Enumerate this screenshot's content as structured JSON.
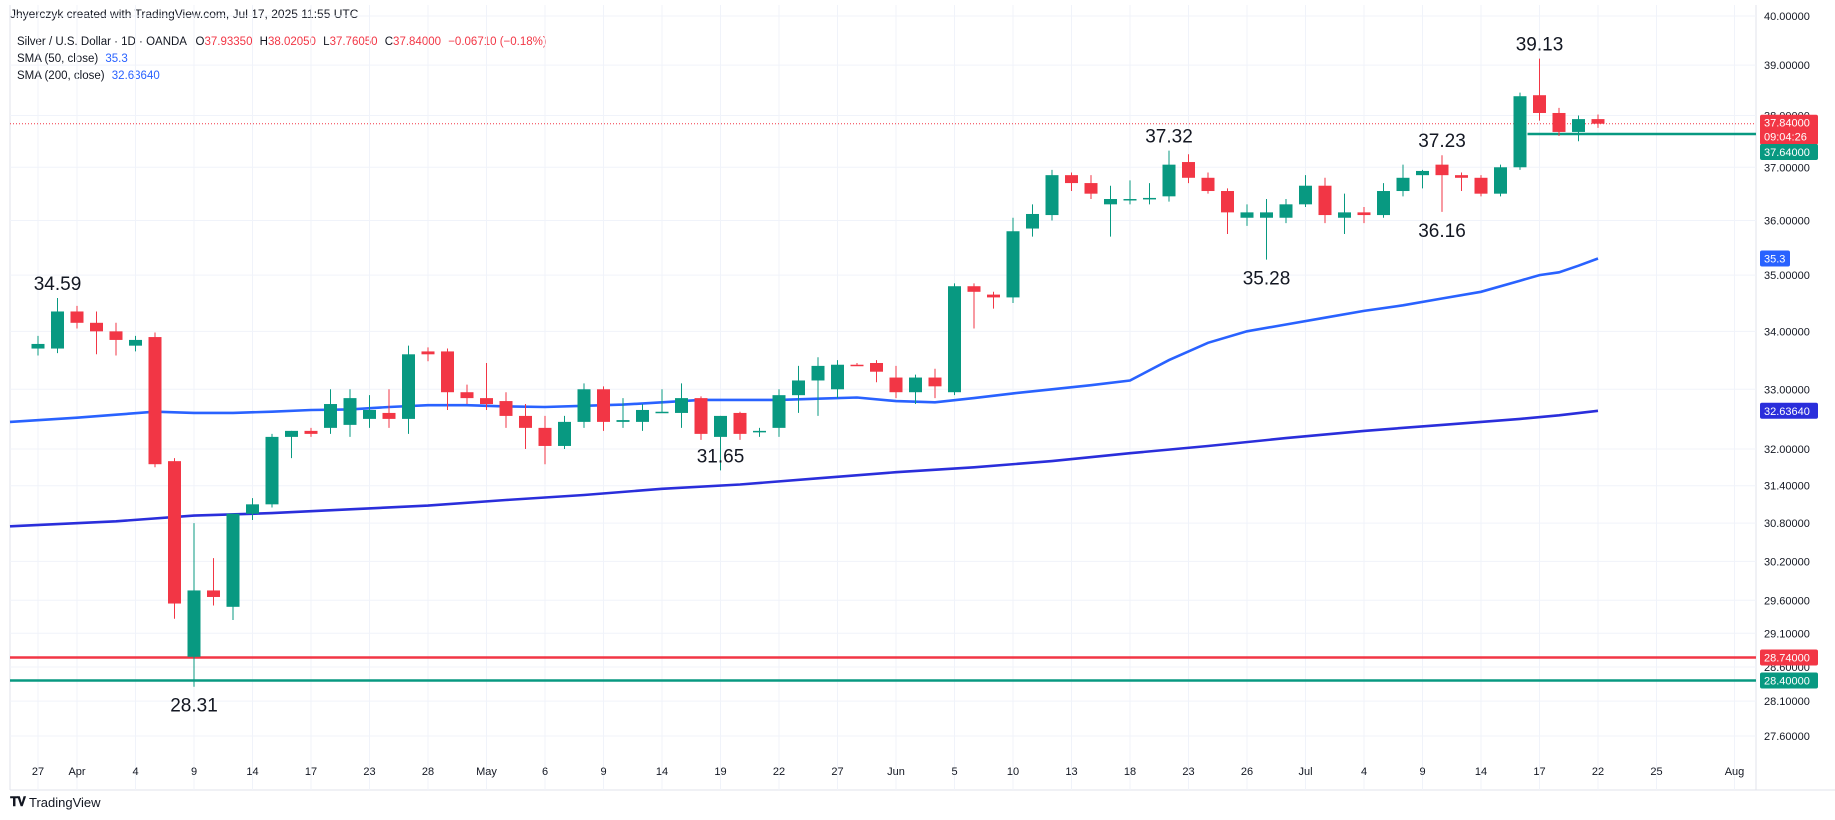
{
  "header": {
    "creator_line": "Jhyerczyk created with TradingView.com, Jul 17, 2025 11:55 UTC"
  },
  "legend": {
    "symbol": "Silver / U.S. Dollar · 1D · OANDA",
    "o_label": "O",
    "o_value": "37.93350",
    "h_label": "H",
    "h_value": "38.02050",
    "l_label": "L",
    "l_value": "37.76050",
    "c_label": "C",
    "c_value": "37.84000",
    "change": "−0.06710 (−0.18%)",
    "sma50_label": "SMA (50, close)",
    "sma50_value": "35.3",
    "sma200_label": "SMA (200, close)",
    "sma200_value": "32.63640"
  },
  "footer": {
    "brand": "TradingView"
  },
  "colors": {
    "up": "#089981",
    "down": "#f23645",
    "sma50": "#2962ff",
    "sma200": "#2a2edb",
    "resistance_red": "#f23645",
    "support_green": "#089981",
    "last_price": "#f23645"
  },
  "chart_data": {
    "type": "candlestick",
    "y_axis": {
      "scale": "log",
      "tick_labels": [
        "40.00000",
        "39.00000",
        "38.00000",
        "37.00000",
        "36.00000",
        "35.00000",
        "34.00000",
        "33.00000",
        "32.00000",
        "31.40000",
        "30.80000",
        "30.20000",
        "29.60000",
        "29.10000",
        "28.60000",
        "28.10000",
        "27.60000"
      ],
      "ticks": [
        40,
        39,
        38,
        37,
        36,
        35,
        34,
        33,
        32,
        31.4,
        30.8,
        30.2,
        29.6,
        29.1,
        28.6,
        28.1,
        27.6
      ],
      "ylim": [
        27.3,
        40.3
      ]
    },
    "x_axis": {
      "tick_labels": [
        "27",
        "Apr",
        "4",
        "9",
        "14",
        "17",
        "23",
        "28",
        "May",
        "6",
        "9",
        "14",
        "19",
        "22",
        "27",
        "Jun",
        "5",
        "10",
        "13",
        "18",
        "23",
        "26",
        "Jul",
        "4",
        "9",
        "14",
        "17",
        "22",
        "25",
        "Aug"
      ],
      "tick_index": [
        0,
        2,
        5,
        8,
        11,
        14,
        17,
        20,
        23,
        26,
        29,
        32,
        35,
        38,
        41,
        44,
        47,
        50,
        53,
        56,
        59,
        62,
        65,
        68,
        71,
        74,
        77,
        80,
        83,
        87
      ]
    },
    "candles": [
      {
        "o": 33.7,
        "h": 33.92,
        "l": 33.58,
        "c": 33.78
      },
      {
        "o": 33.7,
        "h": 34.59,
        "l": 33.62,
        "c": 34.35
      },
      {
        "o": 34.35,
        "h": 34.45,
        "l": 34.05,
        "c": 34.15
      },
      {
        "o": 34.15,
        "h": 34.35,
        "l": 33.6,
        "c": 34.0
      },
      {
        "o": 34.0,
        "h": 34.15,
        "l": 33.58,
        "c": 33.85
      },
      {
        "o": 33.75,
        "h": 33.92,
        "l": 33.65,
        "c": 33.85
      },
      {
        "o": 33.9,
        "h": 33.98,
        "l": 31.7,
        "c": 31.75
      },
      {
        "o": 31.8,
        "h": 31.85,
        "l": 29.32,
        "c": 29.55
      },
      {
        "o": 28.75,
        "h": 30.8,
        "l": 28.31,
        "c": 29.75
      },
      {
        "o": 29.75,
        "h": 30.25,
        "l": 29.52,
        "c": 29.65
      },
      {
        "o": 29.5,
        "h": 30.95,
        "l": 29.3,
        "c": 30.95
      },
      {
        "o": 30.95,
        "h": 31.2,
        "l": 30.85,
        "c": 31.1
      },
      {
        "o": 31.1,
        "h": 32.25,
        "l": 31.05,
        "c": 32.2
      },
      {
        "o": 32.2,
        "h": 32.3,
        "l": 31.85,
        "c": 32.3
      },
      {
        "o": 32.3,
        "h": 32.35,
        "l": 32.2,
        "c": 32.25
      },
      {
        "o": 32.35,
        "h": 33.0,
        "l": 32.25,
        "c": 32.75
      },
      {
        "o": 32.4,
        "h": 33.0,
        "l": 32.2,
        "c": 32.85
      },
      {
        "o": 32.5,
        "h": 32.9,
        "l": 32.35,
        "c": 32.65
      },
      {
        "o": 32.6,
        "h": 33.0,
        "l": 32.35,
        "c": 32.5
      },
      {
        "o": 32.5,
        "h": 33.75,
        "l": 32.25,
        "c": 33.6
      },
      {
        "o": 33.65,
        "h": 33.72,
        "l": 33.48,
        "c": 33.6
      },
      {
        "o": 33.65,
        "h": 33.7,
        "l": 32.65,
        "c": 32.95
      },
      {
        "o": 32.95,
        "h": 33.08,
        "l": 32.75,
        "c": 32.85
      },
      {
        "o": 32.85,
        "h": 33.45,
        "l": 32.65,
        "c": 32.75
      },
      {
        "o": 32.8,
        "h": 32.95,
        "l": 32.35,
        "c": 32.55
      },
      {
        "o": 32.55,
        "h": 32.75,
        "l": 32.0,
        "c": 32.35
      },
      {
        "o": 32.35,
        "h": 32.55,
        "l": 31.75,
        "c": 32.05
      },
      {
        "o": 32.05,
        "h": 32.55,
        "l": 32.0,
        "c": 32.45
      },
      {
        "o": 32.45,
        "h": 33.1,
        "l": 32.35,
        "c": 33.0
      },
      {
        "o": 33.0,
        "h": 33.05,
        "l": 32.3,
        "c": 32.45
      },
      {
        "o": 32.45,
        "h": 32.85,
        "l": 32.35,
        "c": 32.48
      },
      {
        "o": 32.45,
        "h": 32.75,
        "l": 32.3,
        "c": 32.65
      },
      {
        "o": 32.62,
        "h": 33.0,
        "l": 32.6,
        "c": 32.62
      },
      {
        "o": 32.6,
        "h": 33.1,
        "l": 32.35,
        "c": 32.85
      },
      {
        "o": 32.85,
        "h": 32.88,
        "l": 32.15,
        "c": 32.25
      },
      {
        "o": 32.2,
        "h": 32.55,
        "l": 31.65,
        "c": 32.55
      },
      {
        "o": 32.6,
        "h": 32.62,
        "l": 32.15,
        "c": 32.25
      },
      {
        "o": 32.3,
        "h": 32.35,
        "l": 32.2,
        "c": 32.3
      },
      {
        "o": 32.35,
        "h": 33.0,
        "l": 32.2,
        "c": 32.9
      },
      {
        "o": 32.9,
        "h": 33.4,
        "l": 32.6,
        "c": 33.15
      },
      {
        "o": 33.15,
        "h": 33.55,
        "l": 32.55,
        "c": 33.4
      },
      {
        "o": 33.0,
        "h": 33.5,
        "l": 32.85,
        "c": 33.42
      },
      {
        "o": 33.42,
        "h": 33.45,
        "l": 33.4,
        "c": 33.4
      },
      {
        "o": 33.45,
        "h": 33.5,
        "l": 33.12,
        "c": 33.3
      },
      {
        "o": 33.2,
        "h": 33.4,
        "l": 32.85,
        "c": 32.95
      },
      {
        "o": 32.95,
        "h": 33.25,
        "l": 32.75,
        "c": 33.2
      },
      {
        "o": 33.2,
        "h": 33.35,
        "l": 32.85,
        "c": 33.05
      },
      {
        "o": 32.95,
        "h": 34.85,
        "l": 32.9,
        "c": 34.8
      },
      {
        "o": 34.8,
        "h": 34.85,
        "l": 34.05,
        "c": 34.7
      },
      {
        "o": 34.65,
        "h": 34.7,
        "l": 34.4,
        "c": 34.6
      },
      {
        "o": 34.6,
        "h": 36.05,
        "l": 34.5,
        "c": 35.8
      },
      {
        "o": 35.85,
        "h": 36.3,
        "l": 35.7,
        "c": 36.12
      },
      {
        "o": 36.1,
        "h": 36.95,
        "l": 36.0,
        "c": 36.85
      },
      {
        "o": 36.85,
        "h": 36.9,
        "l": 36.55,
        "c": 36.7
      },
      {
        "o": 36.7,
        "h": 36.85,
        "l": 36.4,
        "c": 36.5
      },
      {
        "o": 36.3,
        "h": 36.65,
        "l": 35.7,
        "c": 36.4
      },
      {
        "o": 36.4,
        "h": 36.75,
        "l": 36.3,
        "c": 36.4
      },
      {
        "o": 36.4,
        "h": 36.7,
        "l": 36.3,
        "c": 36.42
      },
      {
        "o": 36.45,
        "h": 37.32,
        "l": 36.35,
        "c": 37.05
      },
      {
        "o": 37.1,
        "h": 37.25,
        "l": 36.7,
        "c": 36.8
      },
      {
        "o": 36.8,
        "h": 36.9,
        "l": 36.5,
        "c": 36.55
      },
      {
        "o": 36.55,
        "h": 36.6,
        "l": 35.75,
        "c": 36.15
      },
      {
        "o": 36.05,
        "h": 36.3,
        "l": 35.9,
        "c": 36.15
      },
      {
        "o": 36.05,
        "h": 36.4,
        "l": 35.28,
        "c": 36.15
      },
      {
        "o": 36.05,
        "h": 36.4,
        "l": 35.95,
        "c": 36.3
      },
      {
        "o": 36.3,
        "h": 36.85,
        "l": 36.25,
        "c": 36.65
      },
      {
        "o": 36.65,
        "h": 36.8,
        "l": 35.95,
        "c": 36.1
      },
      {
        "o": 36.05,
        "h": 36.5,
        "l": 35.75,
        "c": 36.15
      },
      {
        "o": 36.15,
        "h": 36.25,
        "l": 35.95,
        "c": 36.1
      },
      {
        "o": 36.1,
        "h": 36.7,
        "l": 36.05,
        "c": 36.55
      },
      {
        "o": 36.55,
        "h": 37.05,
        "l": 36.45,
        "c": 36.8
      },
      {
        "o": 36.85,
        "h": 36.95,
        "l": 36.6,
        "c": 36.93
      },
      {
        "o": 37.05,
        "h": 37.23,
        "l": 36.16,
        "c": 36.85
      },
      {
        "o": 36.85,
        "h": 36.9,
        "l": 36.55,
        "c": 36.8
      },
      {
        "o": 36.8,
        "h": 36.85,
        "l": 36.45,
        "c": 36.5
      },
      {
        "o": 36.5,
        "h": 37.05,
        "l": 36.45,
        "c": 37.0
      },
      {
        "o": 37.0,
        "h": 38.45,
        "l": 36.95,
        "c": 38.38
      },
      {
        "o": 38.4,
        "h": 39.13,
        "l": 37.9,
        "c": 38.05
      },
      {
        "o": 38.05,
        "h": 38.15,
        "l": 37.6,
        "c": 37.68
      },
      {
        "o": 37.68,
        "h": 38.0,
        "l": 37.5,
        "c": 37.93
      },
      {
        "o": 37.93,
        "h": 38.02,
        "l": 37.76,
        "c": 37.84
      }
    ],
    "series": [
      {
        "name": "SMA (50, close)",
        "points": [
          [
            0,
            32.45
          ],
          [
            2,
            32.52
          ],
          [
            4,
            32.57
          ],
          [
            6,
            32.62
          ],
          [
            8,
            32.6
          ],
          [
            10,
            32.6
          ],
          [
            12,
            32.62
          ],
          [
            14,
            32.65
          ],
          [
            16,
            32.66
          ],
          [
            18,
            32.7
          ],
          [
            20,
            32.73
          ],
          [
            22,
            32.73
          ],
          [
            24,
            32.71
          ],
          [
            26,
            32.7
          ],
          [
            28,
            32.72
          ],
          [
            30,
            32.74
          ],
          [
            32,
            32.78
          ],
          [
            34,
            32.82
          ],
          [
            36,
            32.82
          ],
          [
            38,
            32.82
          ],
          [
            40,
            32.84
          ],
          [
            42,
            32.86
          ],
          [
            44,
            32.8
          ],
          [
            46,
            32.78
          ],
          [
            48,
            32.85
          ],
          [
            50,
            32.93
          ],
          [
            52,
            33.0
          ],
          [
            54,
            33.07
          ],
          [
            56,
            33.15
          ],
          [
            58,
            33.5
          ],
          [
            60,
            33.8
          ],
          [
            62,
            34.0
          ],
          [
            64,
            34.12
          ],
          [
            66,
            34.24
          ],
          [
            68,
            34.36
          ],
          [
            70,
            34.46
          ],
          [
            72,
            34.58
          ],
          [
            74,
            34.7
          ],
          [
            76,
            34.9
          ],
          [
            77,
            35.0
          ],
          [
            78,
            35.05
          ],
          [
            79,
            35.17
          ],
          [
            80,
            35.3
          ]
        ]
      },
      {
        "name": "SMA (200, close)",
        "points": [
          [
            0,
            30.75
          ],
          [
            4,
            30.83
          ],
          [
            8,
            30.92
          ],
          [
            12,
            30.96
          ],
          [
            16,
            31.02
          ],
          [
            20,
            31.08
          ],
          [
            24,
            31.17
          ],
          [
            28,
            31.25
          ],
          [
            32,
            31.35
          ],
          [
            36,
            31.42
          ],
          [
            40,
            31.52
          ],
          [
            44,
            31.62
          ],
          [
            48,
            31.7
          ],
          [
            52,
            31.8
          ],
          [
            56,
            31.93
          ],
          [
            60,
            32.05
          ],
          [
            64,
            32.18
          ],
          [
            68,
            32.3
          ],
          [
            72,
            32.4
          ],
          [
            76,
            32.5
          ],
          [
            78,
            32.56
          ],
          [
            80,
            32.6364
          ]
        ]
      }
    ],
    "horizontal_lines": [
      {
        "value": 37.84,
        "label": "37.84000",
        "sub_label": "09:04:26",
        "style": "dotted",
        "color": "#f23645"
      },
      {
        "value": 37.64,
        "label": "37.64000",
        "style": "solid",
        "color": "#089981",
        "start_index": 77
      },
      {
        "value": 28.74,
        "label": "28.74000",
        "style": "solid",
        "color": "#f23645"
      },
      {
        "value": 28.4,
        "label": "28.40000",
        "style": "solid",
        "color": "#089981"
      }
    ],
    "axis_tags": [
      {
        "value": 35.3,
        "label": "35.3",
        "color": "#2962ff"
      },
      {
        "value": 32.6364,
        "label": "32.63640",
        "color": "#2a2edb"
      }
    ],
    "annotations": [
      {
        "text": "34.59",
        "index": 1,
        "value": 34.59,
        "pos": "above"
      },
      {
        "text": "28.31",
        "index": 8,
        "value": 28.31,
        "pos": "below"
      },
      {
        "text": "31.65",
        "index": 35,
        "value": 31.65,
        "pos": "above"
      },
      {
        "text": "37.32",
        "index": 58,
        "value": 37.32,
        "pos": "above"
      },
      {
        "text": "35.28",
        "index": 63,
        "value": 35.28,
        "pos": "below"
      },
      {
        "text": "37.23",
        "index": 72,
        "value": 37.23,
        "pos": "above"
      },
      {
        "text": "36.16",
        "index": 72,
        "value": 36.16,
        "pos": "below"
      },
      {
        "text": "39.13",
        "index": 77,
        "value": 39.13,
        "pos": "above"
      }
    ]
  }
}
